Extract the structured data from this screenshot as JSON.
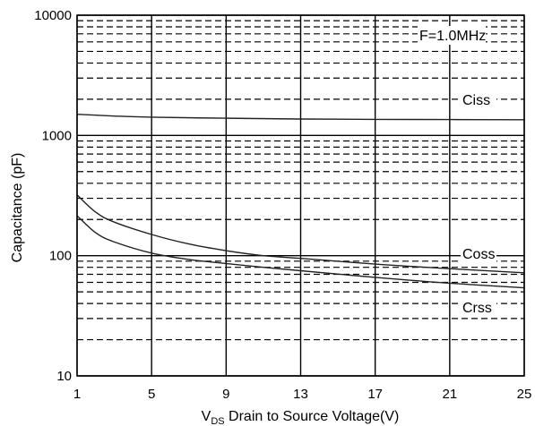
{
  "chart_data": {
    "type": "line",
    "title": "",
    "xlabel": {
      "main": "V",
      "subscript": "DS",
      "rest": " Drain to Source Voltage(V)"
    },
    "ylabel": "Capacitance (pF)",
    "x_ticks": [
      1,
      5,
      9,
      13,
      17,
      21,
      25
    ],
    "y_ticks": [
      10,
      100,
      1000,
      10000
    ],
    "y_tick_labels": [
      "10",
      "100",
      "1000",
      "10000"
    ],
    "xlim": [
      1,
      25
    ],
    "ylim": [
      10,
      10000
    ],
    "y_scale": "log",
    "grid": true,
    "condition_label": "F=1.0MHz",
    "series": [
      {
        "name": "Ciss",
        "x": [
          1,
          3,
          5,
          9,
          13,
          17,
          21,
          25
        ],
        "y": [
          1500,
          1450,
          1420,
          1390,
          1370,
          1360,
          1355,
          1350
        ]
      },
      {
        "name": "Coss",
        "x": [
          1,
          2,
          3,
          5,
          7,
          9,
          11,
          13,
          17,
          21,
          25
        ],
        "y": [
          320,
          230,
          190,
          150,
          125,
          110,
          100,
          95,
          85,
          78,
          72
        ]
      },
      {
        "name": "Crss",
        "x": [
          1,
          2,
          3,
          5,
          7,
          9,
          11,
          13,
          17,
          21,
          25
        ],
        "y": [
          215,
          155,
          130,
          105,
          93,
          86,
          80,
          75,
          66,
          59,
          54
        ]
      }
    ],
    "series_label_positions": [
      {
        "name": "Ciss",
        "near": "right, above curve"
      },
      {
        "name": "Coss",
        "near": "right, above curve"
      },
      {
        "name": "Crss",
        "near": "right, below curve"
      }
    ]
  }
}
